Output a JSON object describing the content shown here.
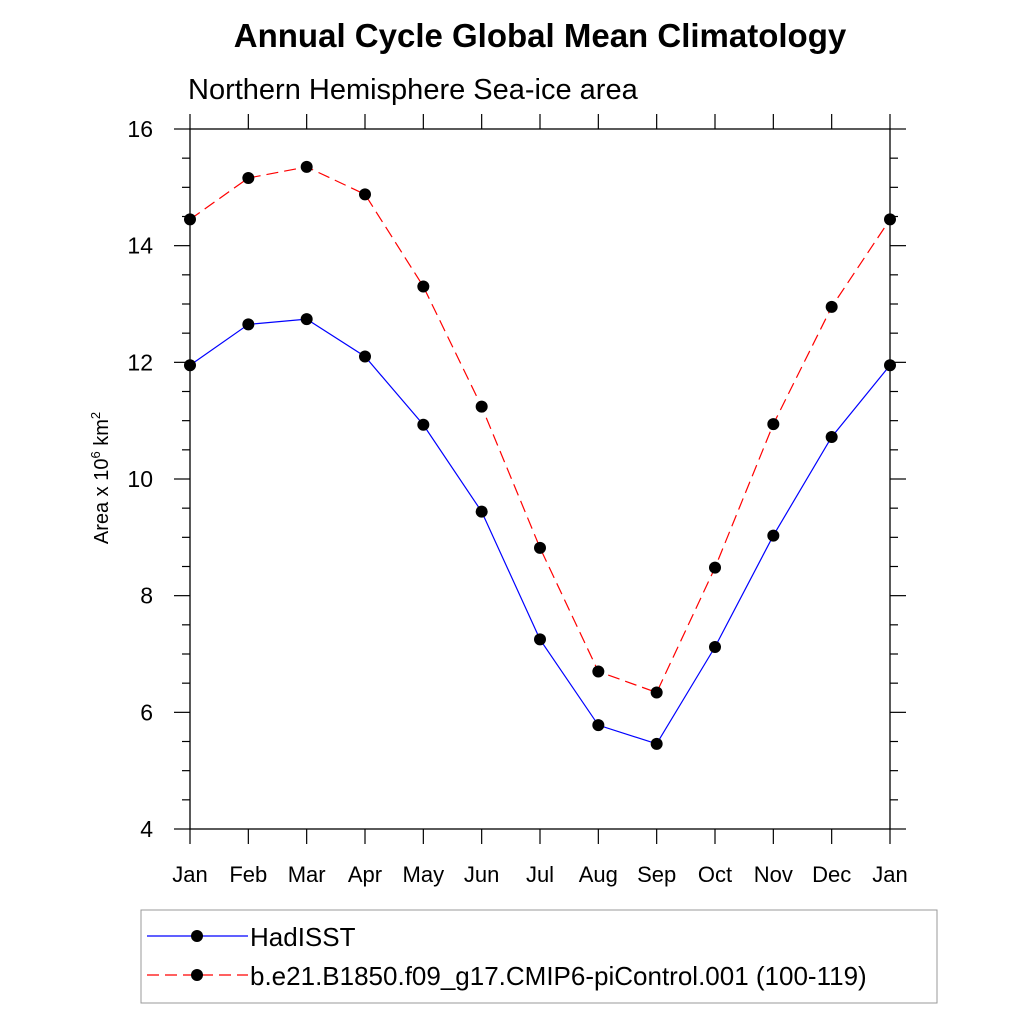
{
  "chart_data": {
    "type": "line",
    "title": "Annual Cycle Global Mean Climatology",
    "subtitle": "Northern Hemisphere Sea-ice area",
    "ylabel": {
      "main": "Area x 10",
      "sup1": "6",
      "mid": " km",
      "sup2": "2"
    },
    "xlabel": "",
    "categories": [
      "Jan",
      "Feb",
      "Mar",
      "Apr",
      "May",
      "Jun",
      "Jul",
      "Aug",
      "Sep",
      "Oct",
      "Nov",
      "Dec",
      "Jan"
    ],
    "ylim": [
      4,
      16
    ],
    "yticks": [
      "4",
      "6",
      "8",
      "10",
      "12",
      "14",
      "16"
    ],
    "series": [
      {
        "name": "HadISST",
        "color": "#0000ff",
        "dash": "solid",
        "values": [
          11.95,
          12.65,
          12.74,
          12.1,
          10.93,
          9.44,
          7.25,
          5.78,
          5.46,
          7.12,
          9.03,
          10.72,
          11.95
        ]
      },
      {
        "name": "b.e21.B1850.f09_g17.CMIP6-piControl.001 (100-119)",
        "color": "#ff0000",
        "dash": "dashed",
        "values": [
          14.45,
          15.16,
          15.35,
          14.88,
          13.3,
          11.24,
          8.82,
          6.7,
          6.34,
          8.48,
          10.94,
          12.95,
          14.45
        ]
      }
    ],
    "legend_position": "bottom",
    "grid": false
  }
}
